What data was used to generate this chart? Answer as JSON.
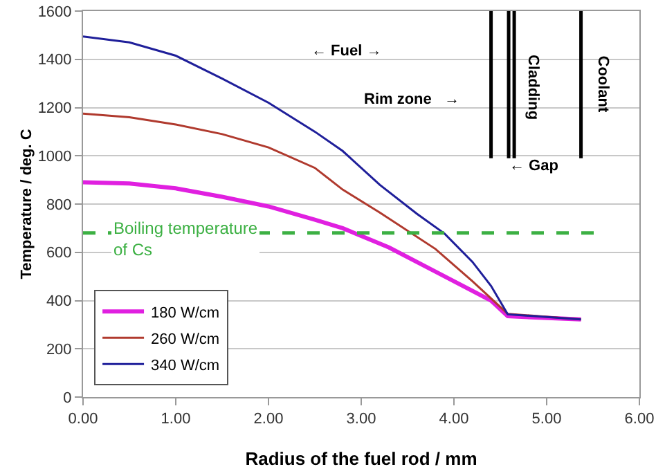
{
  "chart_data": {
    "type": "line",
    "xlabel": "Radius of the fuel rod / mm",
    "ylabel": "Temperature / deg. C",
    "xlim": [
      0,
      6
    ],
    "xticks": [
      {
        "value": 0,
        "label": "0.00"
      },
      {
        "value": 1,
        "label": "1.00"
      },
      {
        "value": 2,
        "label": "2.00"
      },
      {
        "value": 3,
        "label": "3.00"
      },
      {
        "value": 4,
        "label": "4.00"
      },
      {
        "value": 5,
        "label": "5.00"
      },
      {
        "value": 6,
        "label": "6.00"
      }
    ],
    "ylim": [
      0,
      1600
    ],
    "yticks": [
      0,
      200,
      400,
      600,
      800,
      1000,
      1200,
      1400,
      1600
    ],
    "grid": "y",
    "legend": "bottom left",
    "marker": "none",
    "line_style": "solid",
    "series": [
      {
        "name": "180 W/cm",
        "color": "#e020e0",
        "x": [
          0,
          0.5,
          1,
          1.5,
          2,
          2.5,
          2.8,
          3.3,
          3.8,
          4.4,
          4.58,
          5.37
        ],
        "values": [
          890,
          885,
          865,
          830,
          790,
          735,
          700,
          620,
          520,
          400,
          335,
          322
        ]
      },
      {
        "name": "260 W/cm",
        "color": "#b03a2e",
        "x": [
          0,
          0.5,
          1,
          1.5,
          2,
          2.5,
          2.8,
          3.2,
          3.8,
          4.2,
          4.58,
          5.37
        ],
        "values": [
          1175,
          1160,
          1130,
          1090,
          1035,
          950,
          860,
          765,
          614,
          480,
          345,
          322
        ]
      },
      {
        "name": "340 W/cm",
        "color": "#1f1f9a",
        "x": [
          0,
          0.5,
          1,
          1.5,
          2,
          2.5,
          2.8,
          3.2,
          3.6,
          3.9,
          4.2,
          4.4,
          4.58,
          5.37
        ],
        "values": [
          1495,
          1470,
          1415,
          1320,
          1220,
          1100,
          1020,
          880,
          760,
          677,
          560,
          461,
          343,
          322
        ]
      },
      {
        "type": "line",
        "color": "#000000",
        "x": [
          4.4,
          4.4
        ],
        "values": [
          990,
          1600
        ]
      },
      {
        "type": "line",
        "color": "#000000",
        "x": [
          4.59,
          4.59
        ],
        "values": [
          990,
          1600
        ]
      },
      {
        "type": "line",
        "color": "#000000",
        "x": [
          4.65,
          4.65
        ],
        "values": [
          990,
          1600
        ]
      },
      {
        "type": "line",
        "color": "#000000",
        "x": [
          5.37,
          5.37
        ],
        "values": [
          990,
          1600
        ]
      }
    ],
    "ref_lines": [
      {
        "axis": "y",
        "value": 680,
        "label": "Boiling temperature of Cs",
        "color": "#3cb043",
        "line_style": "dashed"
      }
    ],
    "annotations": [
      "← Fuel →",
      "Rim zone   →",
      "Cladding",
      "Coolant",
      "← Gap"
    ]
  }
}
